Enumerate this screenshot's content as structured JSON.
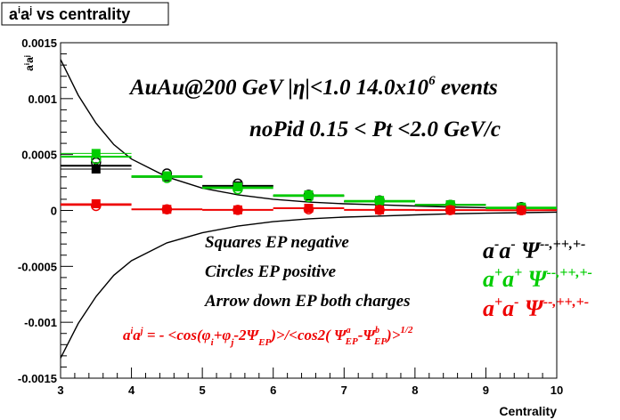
{
  "chart_data": {
    "type": "scatter",
    "title": "aⁱaʲ vs centrality",
    "xlabel": "Centrality",
    "ylabel": "aⁱaʲ",
    "xlim": [
      3,
      10
    ],
    "ylim": [
      -0.0015,
      0.0015
    ],
    "x_ticks": [
      "3",
      "4",
      "5",
      "6",
      "7",
      "8",
      "9",
      "10"
    ],
    "y_ticks": [
      "-0.0015",
      "-0.001",
      "-0.0005",
      "0",
      "0.0005",
      "0.001",
      "0.0015"
    ],
    "grid": false,
    "annotations": {
      "line1": "AuAu@200 GeV |η|<1.0 14.0x10⁶ events",
      "line2": "noPid 0.15 < Pt <2.0 GeV/c",
      "squares": "Squares EP negative",
      "circles": "Circles EP positive",
      "arrows": "Arrow down EP both charges",
      "formula": "aⁱaʲ = - <cos(φᵢ+φⱼ-2ΨEP)>/<cos2(ΨᵃEP-ΨᵇEP)>¹ᐟ²"
    },
    "legend": [
      {
        "label": "a⁻a⁻  Ψ⁻⁻,⁺⁺,⁺⁻",
        "color": "#000000"
      },
      {
        "label": "a⁺a⁺  Ψ⁻⁻,⁺⁺,⁺⁻",
        "color": "#00cc00"
      },
      {
        "label": "a⁺a⁻  Ψ⁻⁻,⁺⁺,⁺⁻",
        "color": "#ee0000"
      }
    ],
    "x": [
      3.5,
      4.5,
      5.5,
      6.5,
      7.5,
      8.5,
      9.5
    ],
    "series": [
      {
        "name": "a⁻a⁻",
        "color": "#000000",
        "squares": [
          0.00037,
          0.0003,
          0.00022,
          0.00013,
          8e-05,
          5e-05,
          2e-05
        ],
        "circles": [
          0.00043,
          0.00033,
          0.00024,
          0.00014,
          9e-05,
          5e-05,
          3e-05
        ],
        "lines": [
          0.0004,
          0.0003,
          0.00022,
          0.00013,
          8e-05,
          5e-05,
          2e-05
        ]
      },
      {
        "name": "a⁺a⁺",
        "color": "#00cc00",
        "squares": [
          0.00051,
          0.00031,
          0.00021,
          0.00014,
          9e-05,
          5e-05,
          3e-05
        ],
        "circles": [
          0.00046,
          0.00029,
          0.00019,
          0.00012,
          8e-05,
          5e-05,
          2e-05
        ],
        "lines": [
          0.00048,
          0.0003,
          0.0002,
          0.00013,
          8e-05,
          5e-05,
          2e-05
        ]
      },
      {
        "name": "a⁺a⁻",
        "color": "#ee0000",
        "squares": [
          6e-05,
          1e-05,
          5e-06,
          2e-05,
          5e-06,
          3e-06,
          2e-06
        ],
        "circles": [
          4e-05,
          1e-05,
          5e-06,
          1e-05,
          5e-06,
          3e-06,
          2e-06
        ],
        "lines": [
          5e-05,
          1e-05,
          5e-06,
          2e-05,
          5e-06,
          3e-06,
          2e-06
        ]
      }
    ],
    "envelope": {
      "x": [
        3.0,
        3.25,
        3.5,
        3.75,
        4.0,
        4.5,
        5.0,
        5.5,
        6.0,
        6.5,
        7.0,
        7.5,
        8.0,
        8.5,
        9.0,
        9.5,
        10.0
      ],
      "upper": [
        0.00135,
        0.00103,
        0.00078,
        0.00059,
        0.00046,
        0.0003,
        0.0002,
        0.00014,
        0.0001,
        7.5e-05,
        6e-05,
        5e-05,
        4e-05,
        3e-05,
        2.5e-05,
        2e-05,
        1.5e-05
      ],
      "lower": [
        -0.00132,
        -0.00101,
        -0.00077,
        -0.00058,
        -0.00045,
        -0.00029,
        -0.0002,
        -0.00014,
        -0.0001,
        -7.5e-05,
        -6e-05,
        -5e-05,
        -4e-05,
        -3e-05,
        -2.5e-05,
        -2e-05,
        -1.5e-05
      ]
    }
  }
}
